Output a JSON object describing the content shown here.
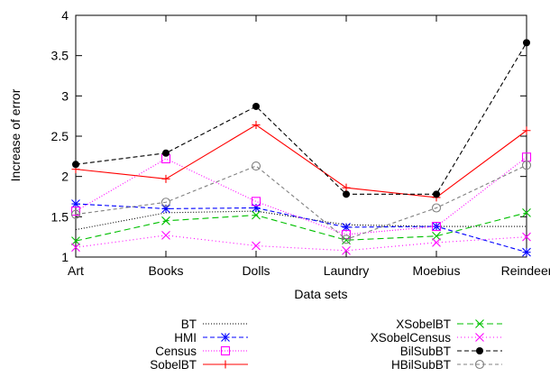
{
  "chart_data": {
    "type": "line",
    "xlabel": "Data sets",
    "ylabel": "Increase of error",
    "categories": [
      "Art",
      "Books",
      "Dolls",
      "Laundry",
      "Moebius",
      "Reindeer"
    ],
    "ylim": [
      1,
      4
    ],
    "yticks": [
      "1",
      "1.5",
      "2",
      "2.5",
      "3",
      "3.5",
      "4"
    ],
    "legend_position": "bottom",
    "series": [
      {
        "name": "BT",
        "values": [
          1.34,
          1.55,
          1.57,
          1.4,
          1.38,
          1.38
        ],
        "color": "#000000",
        "dash": "1,2",
        "marker": "none"
      },
      {
        "name": "HMI",
        "values": [
          1.66,
          1.6,
          1.61,
          1.37,
          1.38,
          1.06
        ],
        "color": "#0000ff",
        "dash": "5,3",
        "marker": "star"
      },
      {
        "name": "Census",
        "values": [
          1.57,
          2.22,
          1.69,
          1.28,
          1.38,
          2.24
        ],
        "color": "#ff00ff",
        "dash": "1,2",
        "marker": "square"
      },
      {
        "name": "SobelBT",
        "values": [
          2.09,
          1.97,
          2.64,
          1.86,
          1.74,
          2.57
        ],
        "color": "#ff0000",
        "dash": "",
        "marker": "plus"
      },
      {
        "name": "XSobelBT",
        "values": [
          1.2,
          1.45,
          1.52,
          1.21,
          1.26,
          1.55
        ],
        "color": "#00c000",
        "dash": "7,4",
        "marker": "x"
      },
      {
        "name": "XSobelCensus",
        "values": [
          1.12,
          1.27,
          1.14,
          1.08,
          1.18,
          1.25
        ],
        "color": "#ff00ff",
        "dash": "1,3",
        "marker": "x"
      },
      {
        "name": "BilSubBT",
        "values": [
          2.15,
          2.29,
          2.87,
          1.78,
          1.78,
          3.66
        ],
        "color": "#000000",
        "dash": "5,3",
        "marker": "dot"
      },
      {
        "name": "HBilSubBT",
        "values": [
          1.53,
          1.68,
          2.13,
          1.22,
          1.61,
          2.14
        ],
        "color": "#808080",
        "dash": "4,3",
        "marker": "circle"
      }
    ]
  }
}
